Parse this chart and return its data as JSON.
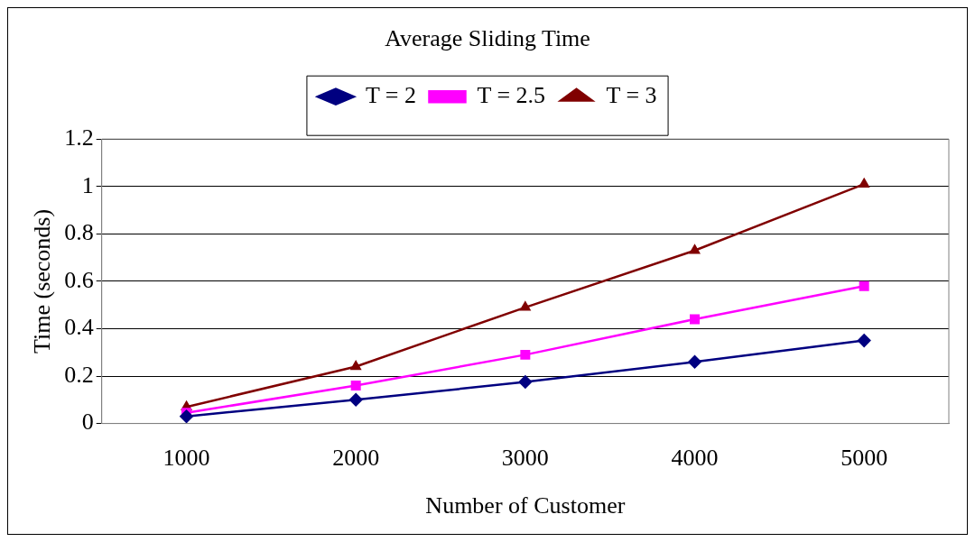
{
  "chart_data": {
    "type": "line",
    "title": "Average Sliding Time",
    "xlabel": "Number of Customer",
    "ylabel": "Time (seconds)",
    "categories": [
      "1000",
      "2000",
      "3000",
      "4000",
      "5000"
    ],
    "series": [
      {
        "name": "T = 2",
        "color": "#000080",
        "marker": "diamond",
        "values": [
          0.03,
          0.1,
          0.175,
          0.26,
          0.35
        ]
      },
      {
        "name": "T = 2.5",
        "color": "#ff00ff",
        "marker": "square",
        "values": [
          0.045,
          0.16,
          0.29,
          0.44,
          0.58
        ]
      },
      {
        "name": "T = 3",
        "color": "#800000",
        "marker": "triangle",
        "values": [
          0.07,
          0.24,
          0.49,
          0.73,
          1.01
        ]
      }
    ],
    "ylim": [
      0,
      1.2
    ],
    "yticks": [
      0,
      0.2,
      0.4,
      0.6,
      0.8,
      1,
      1.2
    ],
    "grid": "y",
    "legend": "top",
    "line_style": "solid"
  }
}
